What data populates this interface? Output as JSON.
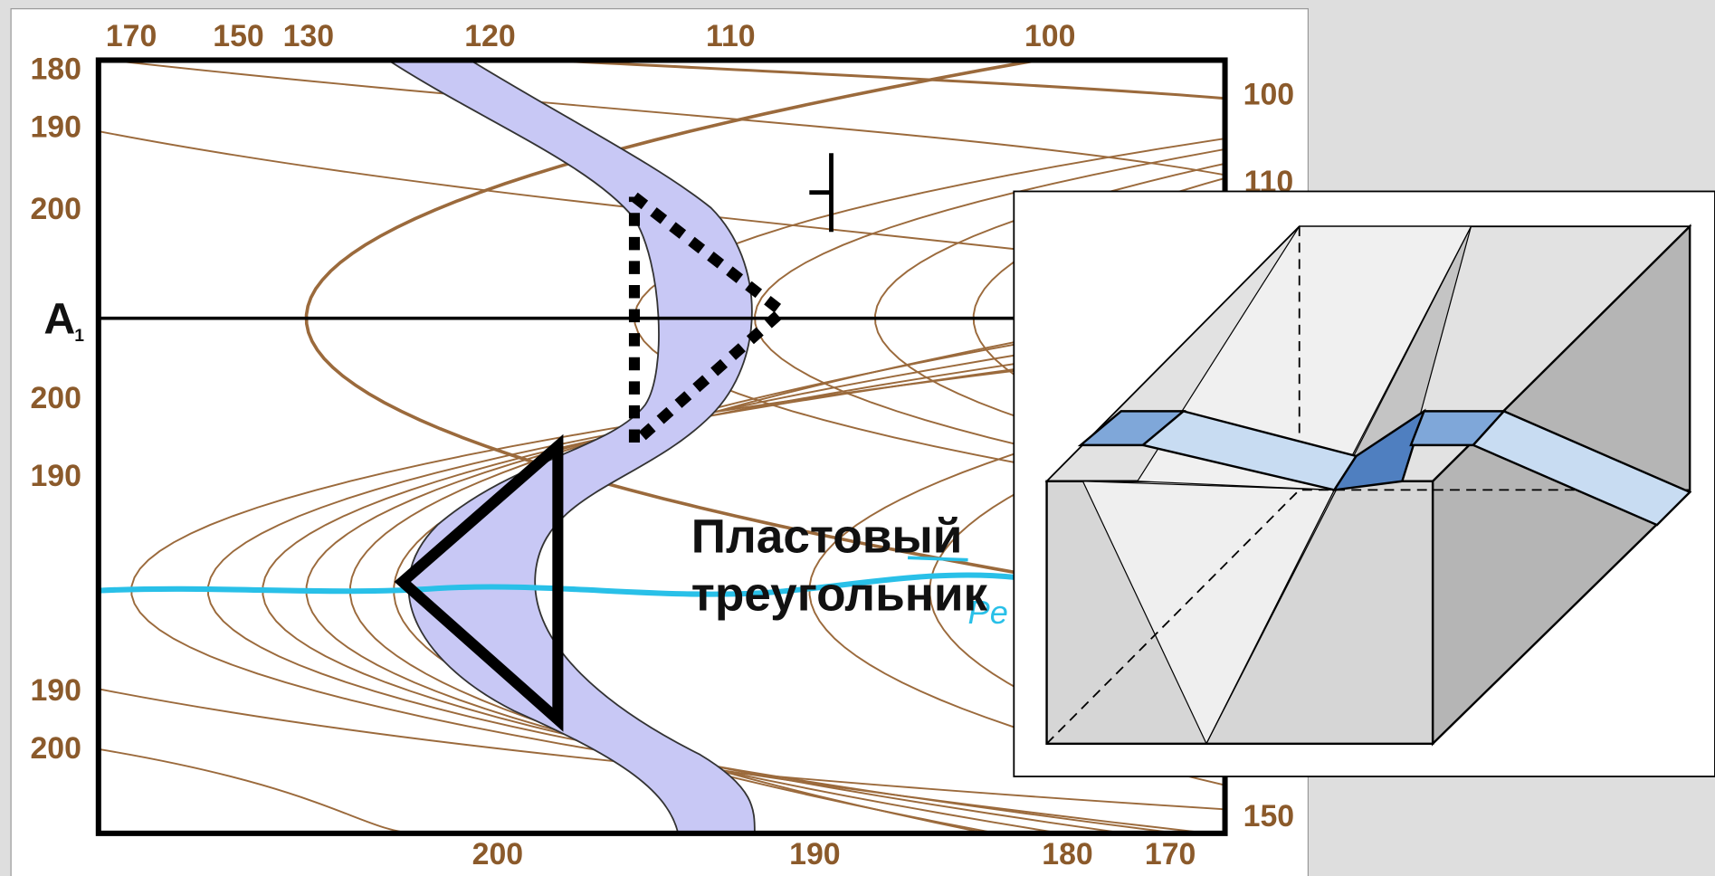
{
  "map": {
    "top_labels": [
      "170",
      "150",
      "130",
      "120",
      "110",
      "100"
    ],
    "bottom_labels": [
      "200",
      "190",
      "180",
      "170"
    ],
    "left_labels": [
      "180",
      "190",
      "200",
      "200",
      "190",
      "190",
      "200"
    ],
    "right_labels": [
      "100",
      "110",
      "150"
    ],
    "section_label": "A",
    "section_index": "1",
    "caption_line1": "Пластовый",
    "caption_line2": "треугольник",
    "river_label": "Pe"
  }
}
